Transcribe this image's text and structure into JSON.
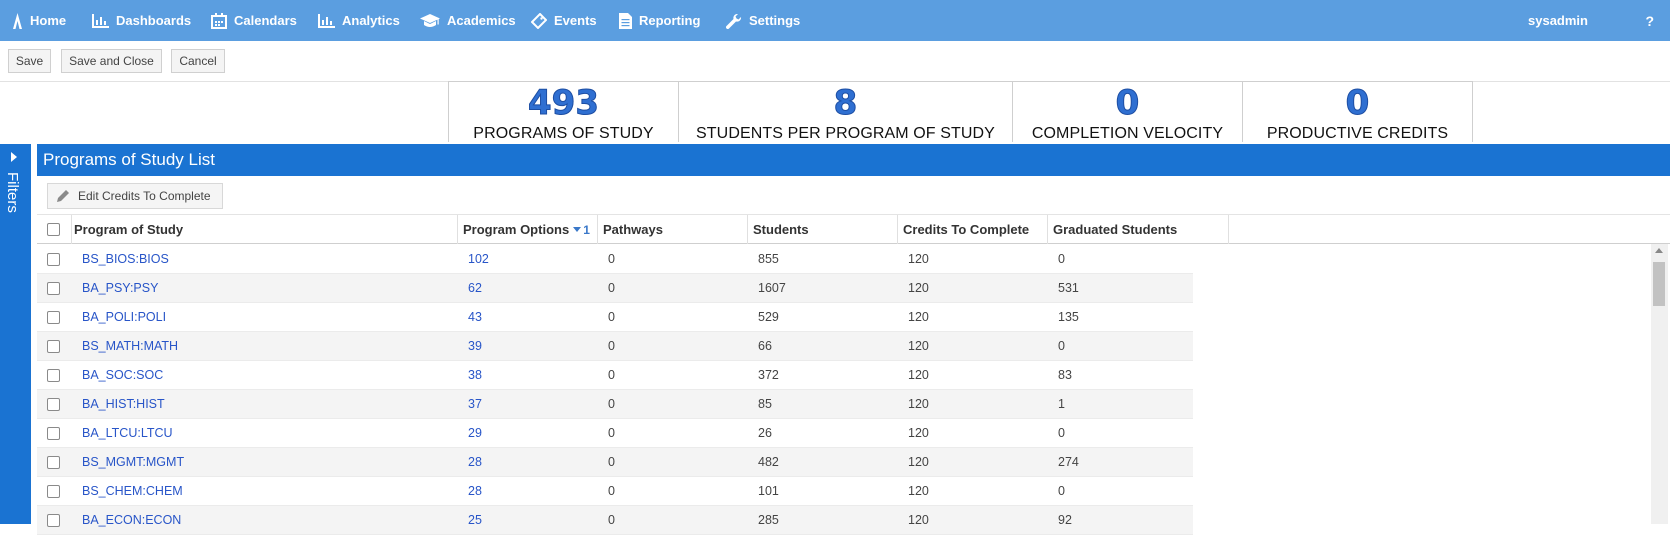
{
  "nav": {
    "items": [
      {
        "label": "Home",
        "icon": "home-icon"
      },
      {
        "label": "Dashboards",
        "icon": "bar-chart-icon"
      },
      {
        "label": "Calendars",
        "icon": "calendar-icon"
      },
      {
        "label": "Analytics",
        "icon": "bar-chart-icon"
      },
      {
        "label": "Academics",
        "icon": "graduation-cap-icon"
      },
      {
        "label": "Events",
        "icon": "ticket-icon"
      },
      {
        "label": "Reporting",
        "icon": "document-icon"
      },
      {
        "label": "Settings",
        "icon": "wrench-icon"
      }
    ],
    "user": "sysadmin",
    "help": "?"
  },
  "toolbar": {
    "save": "Save",
    "save_close": "Save and Close",
    "cancel": "Cancel"
  },
  "kpis": [
    {
      "value": "493",
      "label": "PROGRAMS OF STUDY"
    },
    {
      "value": "8",
      "label": "STUDENTS PER PROGRAM OF STUDY"
    },
    {
      "value": "0",
      "label": "COMPLETION VELOCITY"
    },
    {
      "value": "0",
      "label": "PRODUCTIVE CREDITS"
    }
  ],
  "filters_label": "Filters",
  "panel": {
    "title": "Programs of Study List",
    "edit_button": "Edit Credits To Complete",
    "columns": [
      "Program of Study",
      "Program Options",
      "Pathways",
      "Students",
      "Credits To Complete",
      "Graduated Students"
    ],
    "sort_index": "1",
    "rows": [
      {
        "program": "BS_BIOS:BIOS",
        "options": "102",
        "pathways": "0",
        "students": "855",
        "credits": "120",
        "graduated": "0"
      },
      {
        "program": "BA_PSY:PSY",
        "options": "62",
        "pathways": "0",
        "students": "1607",
        "credits": "120",
        "graduated": "531"
      },
      {
        "program": "BA_POLI:POLI",
        "options": "43",
        "pathways": "0",
        "students": "529",
        "credits": "120",
        "graduated": "135"
      },
      {
        "program": "BS_MATH:MATH",
        "options": "39",
        "pathways": "0",
        "students": "66",
        "credits": "120",
        "graduated": "0"
      },
      {
        "program": "BA_SOC:SOC",
        "options": "38",
        "pathways": "0",
        "students": "372",
        "credits": "120",
        "graduated": "83"
      },
      {
        "program": "BA_HIST:HIST",
        "options": "37",
        "pathways": "0",
        "students": "85",
        "credits": "120",
        "graduated": "1"
      },
      {
        "program": "BA_LTCU:LTCU",
        "options": "29",
        "pathways": "0",
        "students": "26",
        "credits": "120",
        "graduated": "0"
      },
      {
        "program": "BS_MGMT:MGMT",
        "options": "28",
        "pathways": "0",
        "students": "482",
        "credits": "120",
        "graduated": "274"
      },
      {
        "program": "BS_CHEM:CHEM",
        "options": "28",
        "pathways": "0",
        "students": "101",
        "credits": "120",
        "graduated": "0"
      },
      {
        "program": "BA_ECON:ECON",
        "options": "25",
        "pathways": "0",
        "students": "285",
        "credits": "120",
        "graduated": "92"
      }
    ]
  }
}
